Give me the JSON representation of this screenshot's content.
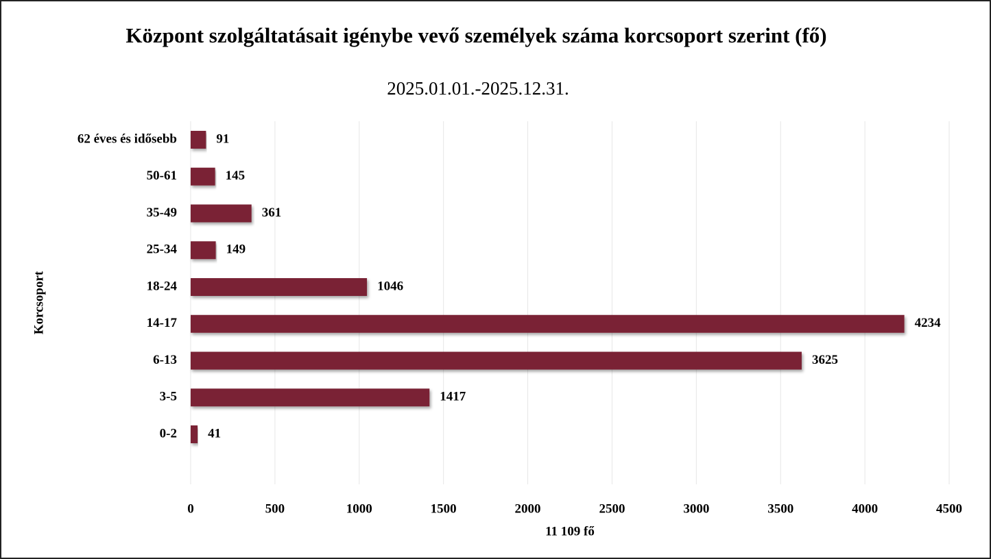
{
  "chart_data": {
    "type": "barh",
    "title": "Központ szolgáltatásait igénybe vevő személyek száma korcsoport szerint (fő)",
    "subtitle": "2025.01.01.-2025.12.31.",
    "xlabel": "11 109 fő",
    "ylabel": "Korcsoport",
    "categories": [
      "62 éves és idősebb",
      "50-61",
      "35-49",
      "25-34",
      "18-24",
      "14-17",
      "6-13",
      "3-5",
      "0-2"
    ],
    "values": [
      91,
      145,
      361,
      149,
      1046,
      4234,
      3625,
      1417,
      41
    ],
    "color": "#7a2335",
    "xlim": [
      0,
      4500
    ],
    "xticks": [
      0,
      500,
      1000,
      1500,
      2000,
      2500,
      3000,
      3500,
      4000,
      4500
    ],
    "grid": true
  }
}
